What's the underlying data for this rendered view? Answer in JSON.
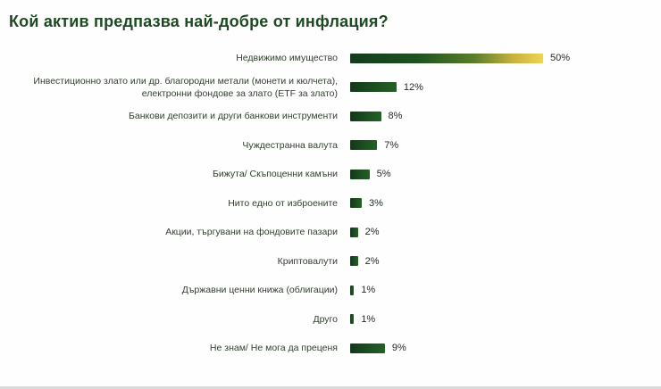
{
  "title": "Кой актив предпазва най-добре от инфлация?",
  "colors": {
    "title": "#1d4a21",
    "bar": "#1d5222",
    "bar_gradient_start": "#143c1b",
    "bar_gradient_end": "#eed455",
    "label": "#31402f",
    "value": "#1f2a1f",
    "background": "#fefefe"
  },
  "chart_data": {
    "type": "bar",
    "orientation": "horizontal",
    "title": "Кой актив предпазва най-добре от инфлация?",
    "xlabel": "",
    "ylabel": "",
    "xlim": [
      0,
      50
    ],
    "grid": false,
    "legend": false,
    "first_bar_gradient": true,
    "categories": [
      "Недвижимо имущество",
      "Инвестиционно злато или др. благородни метали (монети и кюлчета), електронни фондове за злато (ETF за злато)",
      "Банкови депозити и други банкови инструменти",
      "Чуждестранна валута",
      "Бижута/ Скъпоценни камъни",
      "Нито едно от изброените",
      "Акции, търгувани на фондовите пазари",
      "Криптовалути",
      "Държавни ценни книжа (облигации)",
      "Друго",
      "Не знам/ Не мога да преценя"
    ],
    "values": [
      50,
      12,
      8,
      7,
      5,
      3,
      2,
      2,
      1,
      1,
      9
    ],
    "value_labels": [
      "50%",
      "12%",
      "8%",
      "7%",
      "5%",
      "3%",
      "2%",
      "2%",
      "1%",
      "1%",
      "9%"
    ]
  }
}
